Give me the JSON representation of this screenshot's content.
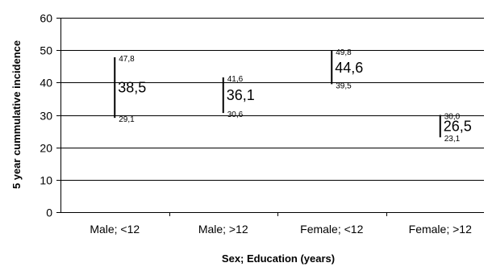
{
  "chart_data": {
    "type": "errorbar",
    "title": "",
    "xlabel": "Sex; Education (years)",
    "ylabel": "5 year cummulative incidence",
    "ylim": [
      0,
      60
    ],
    "yticks": [
      0,
      10,
      20,
      30,
      40,
      50,
      60
    ],
    "ytick_labels": [
      "0",
      "10",
      "20",
      "30",
      "40",
      "50",
      "60"
    ],
    "grid": "horizontal",
    "categories": [
      "Male; <12",
      "Male; >12",
      "Female; <12",
      "Female; >12"
    ],
    "points": [
      {
        "value": 38.5,
        "lower": 29.1,
        "upper": 47.8,
        "value_label": "38,5",
        "lower_label": "29,1",
        "upper_label": "47,8"
      },
      {
        "value": 36.1,
        "lower": 30.6,
        "upper": 41.6,
        "value_label": "36,1",
        "lower_label": "30,6",
        "upper_label": "41,6"
      },
      {
        "value": 44.6,
        "lower": 39.5,
        "upper": 49.8,
        "value_label": "44,6",
        "lower_label": "39,5",
        "upper_label": "49,8"
      },
      {
        "value": 26.5,
        "lower": 23.1,
        "upper": 30.0,
        "value_label": "26,5",
        "lower_label": "23,1",
        "upper_label": "30,0"
      }
    ]
  }
}
